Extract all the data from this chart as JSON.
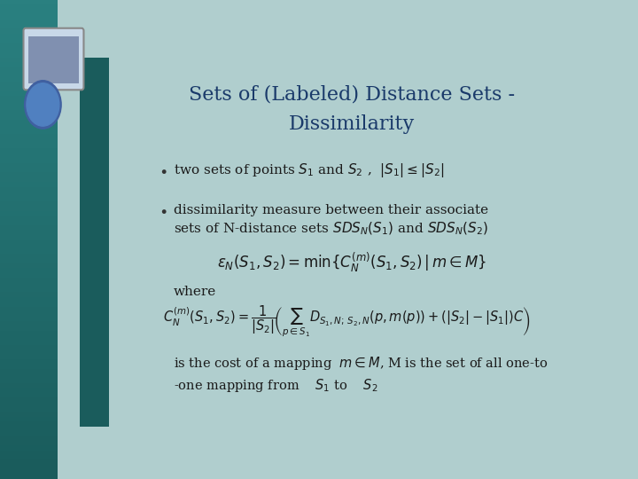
{
  "title_line1": "Sets of (Labeled) Distance Sets -",
  "title_line2": "Dissimilarity",
  "bg_color": "#b0cece",
  "bg_left_color": "#2a6060",
  "text_color": "#1a1a1a",
  "title_color": "#1a3a6a",
  "bullet1": "two sets of points ",
  "bullet1_math": "$S_1$ and $S_2$ ,  $|S_1| \\leq |S_2|$",
  "bullet2_line1": "dissimilarity measure between their associate",
  "bullet2_line2": "sets of N-distance sets ",
  "bullet2_math": "$\\mathit{SDS}_N(S_1)$ and $\\mathit{SDS}_N(S_2)$",
  "formula1": "$\\varepsilon_N(S_1, S_2) = \\min\\{C_N^{(m)}(S_1, S_2)\\,|\\, m \\in M\\}$",
  "where_text": "where",
  "formula2": "$C_N^{(m)}(S_1, S_2) = \\dfrac{1}{|S_2|}\\left(\\sum_{p \\in S_1} D_{S_1,N;S_2,N}(p, m(p)) + (|S_2|-|S_1|)C\\right)$",
  "bottom_text1": "is the cost of a mapping  $m \\in M$, M is the set of all one-to",
  "bottom_text2": "-one mapping from    $S_1$ to    $S_2$"
}
